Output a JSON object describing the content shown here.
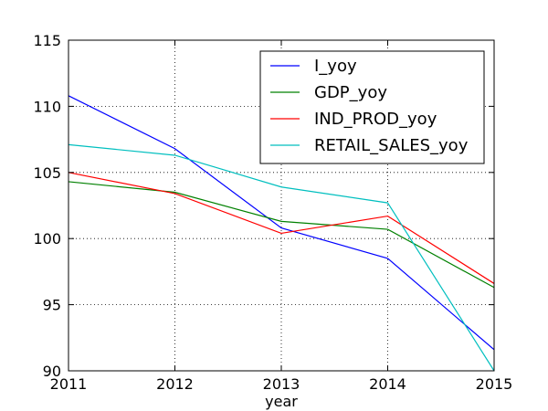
{
  "chart_data": {
    "type": "line",
    "title": "",
    "xlabel": "year",
    "ylabel": "",
    "x": [
      2011,
      2012,
      2013,
      2014,
      2015
    ],
    "xlim": [
      2011,
      2015
    ],
    "ylim": [
      90,
      115
    ],
    "xticks": [
      "2011",
      "2012",
      "2013",
      "2014",
      "2015"
    ],
    "yticks": [
      "90",
      "95",
      "100",
      "105",
      "110",
      "115"
    ],
    "grid": true,
    "legend_position": "upper right",
    "series": [
      {
        "name": "I_yoy",
        "color": "#0000ff",
        "values": [
          110.8,
          106.8,
          100.8,
          98.5,
          91.6
        ]
      },
      {
        "name": "GDP_yoy",
        "color": "#008000",
        "values": [
          104.3,
          103.5,
          101.3,
          100.7,
          96.3
        ]
      },
      {
        "name": "IND_PROD_yoy",
        "color": "#ff0000",
        "values": [
          105.0,
          103.4,
          100.4,
          101.7,
          96.6
        ]
      },
      {
        "name": "RETAIL_SALES_yoy",
        "color": "#00bfbf",
        "values": [
          107.1,
          106.3,
          103.9,
          102.7,
          90.0
        ]
      }
    ]
  }
}
